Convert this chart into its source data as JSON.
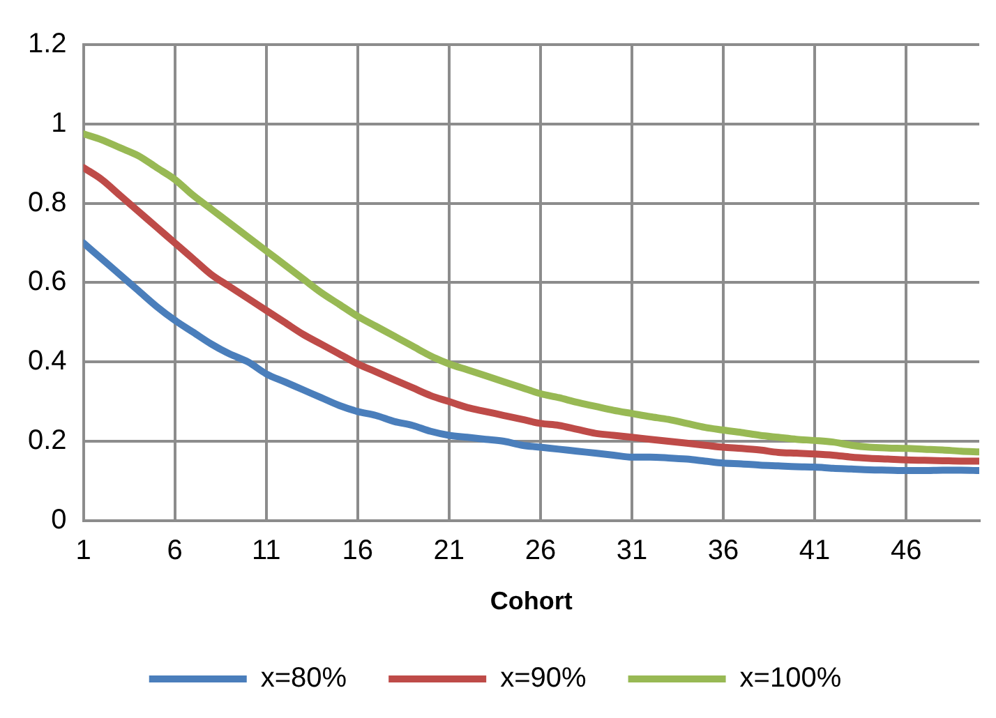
{
  "chart_data": {
    "type": "line",
    "xlabel": "Cohort",
    "x": [
      1,
      2,
      3,
      4,
      5,
      6,
      7,
      8,
      9,
      10,
      11,
      12,
      13,
      14,
      15,
      16,
      17,
      18,
      19,
      20,
      21,
      22,
      23,
      24,
      25,
      26,
      27,
      28,
      29,
      30,
      31,
      32,
      33,
      34,
      35,
      36,
      37,
      38,
      39,
      40,
      41,
      42,
      43,
      44,
      45,
      46,
      47,
      48,
      49,
      50
    ],
    "xlim": [
      1,
      50
    ],
    "xticks": [
      1,
      6,
      11,
      16,
      21,
      26,
      31,
      36,
      41,
      46
    ],
    "series": [
      {
        "name": "x=80%",
        "color": "#4a7ebb",
        "values": [
          0.7,
          0.66,
          0.62,
          0.58,
          0.54,
          0.505,
          0.475,
          0.445,
          0.42,
          0.4,
          0.37,
          0.35,
          0.33,
          0.31,
          0.29,
          0.275,
          0.265,
          0.25,
          0.24,
          0.225,
          0.215,
          0.21,
          0.205,
          0.2,
          0.19,
          0.185,
          0.18,
          0.175,
          0.17,
          0.165,
          0.16,
          0.16,
          0.158,
          0.155,
          0.15,
          0.145,
          0.143,
          0.14,
          0.138,
          0.136,
          0.135,
          0.132,
          0.13,
          0.128,
          0.127,
          0.126,
          0.126,
          0.127,
          0.127,
          0.126
        ]
      },
      {
        "name": "x=90%",
        "color": "#be4b48",
        "values": [
          0.89,
          0.86,
          0.82,
          0.78,
          0.74,
          0.7,
          0.66,
          0.62,
          0.59,
          0.56,
          0.53,
          0.5,
          0.47,
          0.445,
          0.42,
          0.395,
          0.375,
          0.355,
          0.335,
          0.315,
          0.3,
          0.285,
          0.275,
          0.265,
          0.255,
          0.245,
          0.24,
          0.23,
          0.22,
          0.215,
          0.21,
          0.205,
          0.2,
          0.195,
          0.19,
          0.185,
          0.182,
          0.178,
          0.172,
          0.17,
          0.168,
          0.165,
          0.16,
          0.157,
          0.155,
          0.153,
          0.152,
          0.151,
          0.15,
          0.15
        ]
      },
      {
        "name": "x=100%",
        "color": "#98b954",
        "values": [
          0.975,
          0.96,
          0.94,
          0.92,
          0.89,
          0.86,
          0.82,
          0.785,
          0.75,
          0.715,
          0.68,
          0.645,
          0.61,
          0.575,
          0.545,
          0.515,
          0.49,
          0.465,
          0.44,
          0.415,
          0.395,
          0.38,
          0.365,
          0.35,
          0.335,
          0.32,
          0.31,
          0.298,
          0.288,
          0.278,
          0.27,
          0.262,
          0.255,
          0.245,
          0.235,
          0.228,
          0.222,
          0.215,
          0.21,
          0.205,
          0.202,
          0.198,
          0.19,
          0.185,
          0.183,
          0.182,
          0.18,
          0.178,
          0.175,
          0.173
        ]
      }
    ],
    "ylim": [
      0,
      1.2
    ],
    "yticks": [
      0,
      0.2,
      0.4,
      0.6,
      0.8,
      1,
      1.2
    ],
    "grid": true,
    "legend": "bottom",
    "marker": "none",
    "line_style": "solid"
  }
}
